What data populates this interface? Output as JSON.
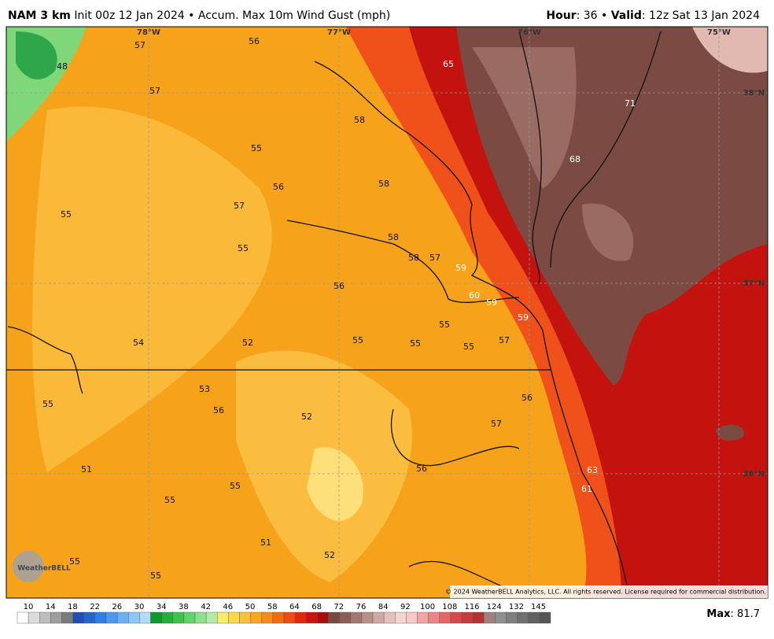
{
  "header": {
    "model": "NAM 3 km",
    "init": "Init 00z 12 Jan 2024",
    "separator": "•",
    "product": "Accum. Max 10m Wind Gust (mph)",
    "hour_label": "Hour",
    "hour": ": 36",
    "valid_label": "Valid",
    "valid": ": 12z Sat 13 Jan 2024"
  },
  "map": {
    "lon_labels": [
      "78°W",
      "77°W",
      "76°W",
      "75°W"
    ],
    "lat_labels": [
      "38°N",
      "37°N",
      "36°N"
    ],
    "values": [
      57,
      56,
      48,
      57,
      65,
      58,
      71,
      55,
      56,
      58,
      68,
      55,
      57,
      55,
      58,
      58,
      57,
      59,
      56,
      60,
      59,
      59,
      55,
      54,
      52,
      55,
      55,
      55,
      57,
      53,
      56,
      55,
      56,
      52,
      57,
      51,
      56,
      63,
      55,
      61,
      55,
      51,
      52,
      55,
      55
    ],
    "copyright": "© 2024 WeatherBELL Analytics, LLC. All rights reserved. License required for commercial distribution.",
    "logo": "WeatherBELL"
  },
  "colorbar": {
    "ticks": [
      10,
      14,
      18,
      22,
      26,
      30,
      34,
      38,
      42,
      46,
      50,
      58,
      64,
      68,
      72,
      76,
      84,
      92,
      100,
      108,
      116,
      124,
      132,
      145
    ],
    "max_label": "Max",
    "max": ": 81.7"
  }
}
